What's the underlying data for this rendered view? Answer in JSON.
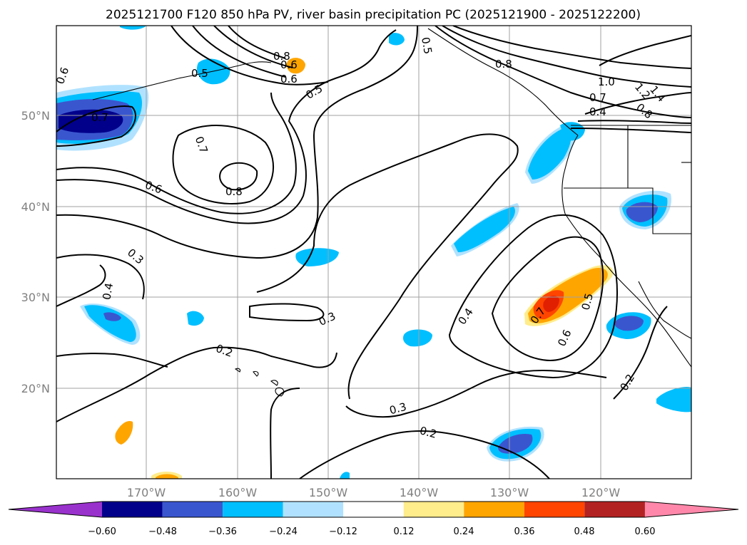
{
  "title": "2025121700 F120 850 hPa PV, river basin precipitation PC (2025121900 - 2025122200)",
  "axes": {
    "lat_ticks": [
      "50°N",
      "40°N",
      "30°N",
      "20°N"
    ],
    "lon_ticks": [
      "170°W",
      "160°W",
      "150°W",
      "140°W",
      "130°W",
      "120°W"
    ]
  },
  "colorbar": {
    "ticks": [
      "−0.60",
      "−0.48",
      "−0.36",
      "−0.24",
      "−0.12",
      "0.12",
      "0.24",
      "0.36",
      "0.48",
      "0.60"
    ],
    "colors": [
      "#9932cc",
      "#00008b",
      "#3a56cf",
      "#00bfff",
      "#b0e2ff",
      "#ffffff",
      "#ffec8b",
      "#ffa500",
      "#ff4500",
      "#b22222",
      "#ff88aa"
    ]
  },
  "contour_labels": [
    "0.6",
    "0.7",
    "0.7",
    "0.6",
    "0.8",
    "0.5",
    "0.6",
    "0.5",
    "0.8",
    "0.5",
    "0.8",
    "1.0",
    "1.2",
    "1.4",
    "0.8",
    "0.7",
    "0.4",
    "0.6",
    "0.3",
    "0.4",
    "0.3",
    "0.2",
    "0.4",
    "0.7",
    "0.5",
    "0.6",
    "0.3",
    "0.2",
    "0.2"
  ]
}
